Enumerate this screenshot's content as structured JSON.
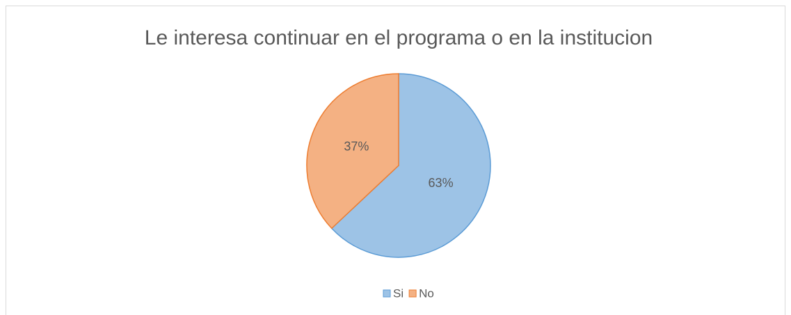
{
  "chart_data": {
    "type": "pie",
    "title": "Le interesa continuar en el programa o en la institucion",
    "categories": [
      "Si",
      "No"
    ],
    "values": [
      63,
      37
    ],
    "value_labels": [
      "63%",
      "37%"
    ],
    "colors": [
      "#9dc3e6",
      "#f4b183"
    ],
    "edge_colors": [
      "#5b9bd5",
      "#ed7d31"
    ],
    "legend": "bottom"
  }
}
